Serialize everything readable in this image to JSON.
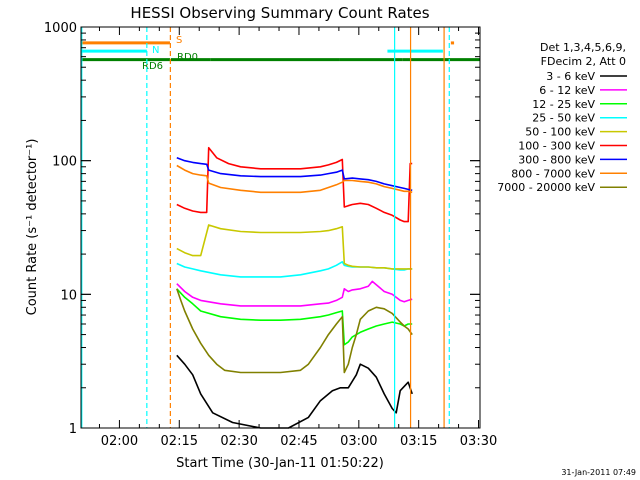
{
  "chart_data": {
    "type": "line",
    "title": "HESSI Observing Summary Count Rates",
    "xlabel": "Start Time (30-Jan-11 01:50:22)",
    "ylabel": "Count Rate (s⁻¹ detector⁻¹)",
    "x_unit": "minutes after 01:50:22",
    "xlim": [
      0,
      100
    ],
    "ylim": [
      1,
      1000
    ],
    "y_scale": "log",
    "grid": false,
    "legend_position": "right",
    "x_ticks": [
      {
        "x": 9.63,
        "label": "02:00"
      },
      {
        "x": 24.63,
        "label": "02:15"
      },
      {
        "x": 39.63,
        "label": "02:30"
      },
      {
        "x": 54.63,
        "label": "02:45"
      },
      {
        "x": 69.63,
        "label": "03:00"
      },
      {
        "x": 84.63,
        "label": "03:15"
      },
      {
        "x": 99.63,
        "label": "03:30"
      }
    ],
    "y_ticks": [
      {
        "y": 1,
        "label": "1"
      },
      {
        "y": 10,
        "label": "10"
      },
      {
        "y": 100,
        "label": "100"
      },
      {
        "y": 1000,
        "label": "1000"
      }
    ],
    "legend_header": [
      "Det 1,3,4,5,6,9,",
      "FDecim 2, Att 0"
    ],
    "series": [
      {
        "name": "3 - 6 keV",
        "color": "#000000",
        "points": [
          [
            24,
            3.5
          ],
          [
            26,
            3.0
          ],
          [
            28,
            2.5
          ],
          [
            30,
            1.8
          ],
          [
            33,
            1.3
          ],
          [
            38,
            1.1
          ],
          [
            45,
            1.0
          ],
          [
            52,
            1.0
          ],
          [
            57,
            1.2
          ],
          [
            60,
            1.6
          ],
          [
            63,
            1.9
          ],
          [
            65,
            2.0
          ],
          [
            67,
            2.0
          ],
          [
            69,
            2.5
          ],
          [
            70,
            3.0
          ],
          [
            72,
            2.8
          ],
          [
            74,
            2.4
          ],
          [
            76,
            1.8
          ],
          [
            78,
            1.4
          ],
          [
            79,
            1.3
          ],
          [
            80,
            1.9
          ],
          [
            82,
            2.2
          ],
          [
            83,
            1.8
          ]
        ]
      },
      {
        "name": "6 - 12 keV",
        "color": "#ff00ff",
        "points": [
          [
            24,
            12
          ],
          [
            26,
            10.5
          ],
          [
            28,
            9.5
          ],
          [
            30,
            9.0
          ],
          [
            35,
            8.5
          ],
          [
            40,
            8.2
          ],
          [
            45,
            8.2
          ],
          [
            50,
            8.2
          ],
          [
            55,
            8.2
          ],
          [
            60,
            8.5
          ],
          [
            62,
            8.6
          ],
          [
            64,
            9.0
          ],
          [
            65.5,
            9.5
          ],
          [
            66,
            11
          ],
          [
            67,
            10.5
          ],
          [
            68,
            10.8
          ],
          [
            70,
            11
          ],
          [
            72,
            11.5
          ],
          [
            73,
            12.5
          ],
          [
            74,
            11.8
          ],
          [
            76,
            10.5
          ],
          [
            78,
            10.0
          ],
          [
            80,
            9.0
          ],
          [
            81,
            8.8
          ],
          [
            82,
            9.0
          ],
          [
            83,
            9.2
          ]
        ]
      },
      {
        "name": "12 - 25 keV",
        "color": "#00ff00",
        "points": [
          [
            24,
            11
          ],
          [
            26,
            9.5
          ],
          [
            28,
            8.5
          ],
          [
            30,
            7.5
          ],
          [
            35,
            6.8
          ],
          [
            40,
            6.5
          ],
          [
            45,
            6.4
          ],
          [
            50,
            6.4
          ],
          [
            55,
            6.5
          ],
          [
            60,
            6.8
          ],
          [
            62,
            7.0
          ],
          [
            64,
            7.3
          ],
          [
            65.5,
            7.5
          ],
          [
            66,
            4.2
          ],
          [
            67,
            4.4
          ],
          [
            68,
            4.8
          ],
          [
            70,
            5.2
          ],
          [
            72,
            5.5
          ],
          [
            74,
            5.8
          ],
          [
            76,
            6.0
          ],
          [
            78,
            6.2
          ],
          [
            80,
            6.0
          ],
          [
            81,
            5.8
          ],
          [
            82,
            6.0
          ],
          [
            83,
            6.0
          ]
        ]
      },
      {
        "name": "25 - 50 keV",
        "color": "#00ffff",
        "points": [
          [
            24,
            17
          ],
          [
            26,
            16
          ],
          [
            28,
            15.5
          ],
          [
            30,
            15
          ],
          [
            35,
            14
          ],
          [
            40,
            13.5
          ],
          [
            45,
            13.5
          ],
          [
            50,
            13.5
          ],
          [
            55,
            14
          ],
          [
            60,
            15
          ],
          [
            62,
            15.5
          ],
          [
            64,
            16.5
          ],
          [
            65.5,
            17.5
          ],
          [
            66,
            16.5
          ],
          [
            67,
            16.2
          ],
          [
            68,
            16
          ],
          [
            70,
            16
          ],
          [
            72,
            16
          ],
          [
            74,
            15.8
          ],
          [
            76,
            15.8
          ],
          [
            78,
            15.5
          ],
          [
            80,
            15.2
          ],
          [
            81,
            15.2
          ],
          [
            82,
            15.5
          ],
          [
            83,
            15.5
          ]
        ]
      },
      {
        "name": "50 - 100 keV",
        "color": "#c8c800",
        "points": [
          [
            24,
            22
          ],
          [
            26,
            20.5
          ],
          [
            28,
            19.5
          ],
          [
            30,
            19.5
          ],
          [
            32,
            33
          ],
          [
            35,
            31
          ],
          [
            40,
            29.5
          ],
          [
            45,
            29
          ],
          [
            50,
            29
          ],
          [
            55,
            29
          ],
          [
            60,
            29.5
          ],
          [
            62,
            30
          ],
          [
            64,
            31
          ],
          [
            65.5,
            32
          ],
          [
            66,
            17
          ],
          [
            67,
            16.5
          ],
          [
            68,
            16.2
          ],
          [
            70,
            16
          ],
          [
            72,
            16
          ],
          [
            74,
            15.8
          ],
          [
            76,
            15.8
          ],
          [
            78,
            15.5
          ],
          [
            80,
            15.5
          ],
          [
            81,
            15.5
          ],
          [
            82,
            15.5
          ],
          [
            83,
            15.5
          ]
        ]
      },
      {
        "name": "100 - 300 keV",
        "color": "#ff0000",
        "points": [
          [
            24,
            47
          ],
          [
            26,
            44
          ],
          [
            28,
            42
          ],
          [
            30,
            41
          ],
          [
            31.5,
            41
          ],
          [
            32,
            125
          ],
          [
            34,
            105
          ],
          [
            37,
            95
          ],
          [
            40,
            90
          ],
          [
            45,
            87
          ],
          [
            50,
            87
          ],
          [
            55,
            87
          ],
          [
            60,
            90
          ],
          [
            62,
            93
          ],
          [
            64,
            97
          ],
          [
            65.5,
            102
          ],
          [
            66,
            45
          ],
          [
            67,
            46
          ],
          [
            68,
            47
          ],
          [
            70,
            48
          ],
          [
            72,
            47
          ],
          [
            74,
            44
          ],
          [
            76,
            41
          ],
          [
            78,
            39
          ],
          [
            80,
            36
          ],
          [
            81,
            35
          ],
          [
            82,
            35
          ],
          [
            82.5,
            95
          ],
          [
            83,
            95
          ]
        ]
      },
      {
        "name": "300 - 800 keV",
        "color": "#0000ff",
        "points": [
          [
            24,
            105
          ],
          [
            26,
            100
          ],
          [
            28,
            97
          ],
          [
            30,
            95
          ],
          [
            31.5,
            94
          ],
          [
            32,
            85
          ],
          [
            35,
            80
          ],
          [
            40,
            77
          ],
          [
            45,
            76
          ],
          [
            50,
            76
          ],
          [
            55,
            76
          ],
          [
            60,
            78
          ],
          [
            62,
            80
          ],
          [
            64,
            82
          ],
          [
            65.5,
            85
          ],
          [
            66,
            73
          ],
          [
            68,
            74
          ],
          [
            70,
            73
          ],
          [
            72,
            72
          ],
          [
            74,
            70
          ],
          [
            76,
            67
          ],
          [
            78,
            65
          ],
          [
            80,
            63
          ],
          [
            81,
            62
          ],
          [
            82,
            61
          ],
          [
            83,
            60
          ]
        ]
      },
      {
        "name": "800 - 7000 keV",
        "color": "#ff8000",
        "points": [
          [
            24,
            92
          ],
          [
            26,
            85
          ],
          [
            28,
            80
          ],
          [
            30,
            78
          ],
          [
            31.5,
            77
          ],
          [
            32,
            68
          ],
          [
            35,
            63
          ],
          [
            40,
            60
          ],
          [
            45,
            58
          ],
          [
            50,
            58
          ],
          [
            55,
            58
          ],
          [
            60,
            60
          ],
          [
            62,
            63
          ],
          [
            64,
            66
          ],
          [
            65.5,
            69
          ],
          [
            66,
            71
          ],
          [
            68,
            71
          ],
          [
            70,
            70
          ],
          [
            72,
            69
          ],
          [
            74,
            67
          ],
          [
            76,
            64
          ],
          [
            78,
            62
          ],
          [
            80,
            60
          ],
          [
            81,
            59
          ],
          [
            82,
            59
          ],
          [
            83,
            58
          ]
        ]
      },
      {
        "name": "7000 - 20000 keV",
        "color": "#808000",
        "points": [
          [
            24,
            11
          ],
          [
            25,
            9
          ],
          [
            26,
            7.5
          ],
          [
            28,
            5.5
          ],
          [
            30,
            4.3
          ],
          [
            32,
            3.5
          ],
          [
            34,
            3.0
          ],
          [
            36,
            2.7
          ],
          [
            40,
            2.6
          ],
          [
            45,
            2.6
          ],
          [
            50,
            2.6
          ],
          [
            55,
            2.7
          ],
          [
            57,
            3.0
          ],
          [
            60,
            4.0
          ],
          [
            62,
            5.0
          ],
          [
            64,
            6.0
          ],
          [
            65.5,
            6.8
          ],
          [
            66,
            2.6
          ],
          [
            67,
            3.0
          ],
          [
            68,
            4.0
          ],
          [
            69,
            5.0
          ],
          [
            70,
            6.5
          ],
          [
            72,
            7.5
          ],
          [
            74,
            8.0
          ],
          [
            76,
            7.8
          ],
          [
            78,
            7.2
          ],
          [
            80,
            6.2
          ],
          [
            81,
            5.8
          ],
          [
            82,
            5.5
          ],
          [
            83,
            5.0
          ]
        ]
      }
    ],
    "flag_bars": [
      {
        "label": "S",
        "color": "#ff8000",
        "y": 760,
        "segments": [
          [
            0,
            22.3
          ],
          [
            92.7,
            93.5
          ]
        ]
      },
      {
        "label": "N",
        "color": "#00ffff",
        "y": 660,
        "segments": [
          [
            0,
            16.5
          ],
          [
            76.8,
            90.7
          ]
        ]
      },
      {
        "label": "RD0",
        "color": "#008000",
        "y": 570,
        "segments": [
          [
            22.5,
            32.5
          ],
          [
            32.5,
            64.8
          ],
          [
            64.8,
            80.5
          ],
          [
            80.5,
            100
          ]
        ]
      },
      {
        "label": "RD6",
        "color": "#008000",
        "y": 570,
        "segments": [
          [
            0,
            22.3
          ]
        ]
      }
    ],
    "vertical_lines": [
      {
        "x": 0.2,
        "color": "#00ffff",
        "style": "solid"
      },
      {
        "x": 16.5,
        "color": "#00ffff",
        "style": "dashed"
      },
      {
        "x": 22.4,
        "color": "#ff8000",
        "style": "dashed"
      },
      {
        "x": 78.6,
        "color": "#00ffff",
        "style": "solid"
      },
      {
        "x": 82.6,
        "color": "#ff8000",
        "style": "solid"
      },
      {
        "x": 91.0,
        "color": "#ff8000",
        "style": "solid"
      },
      {
        "x": 92.3,
        "color": "#00ffff",
        "style": "dashed"
      }
    ]
  },
  "footer": {
    "timestamp": "31-Jan-2011 07:49"
  }
}
